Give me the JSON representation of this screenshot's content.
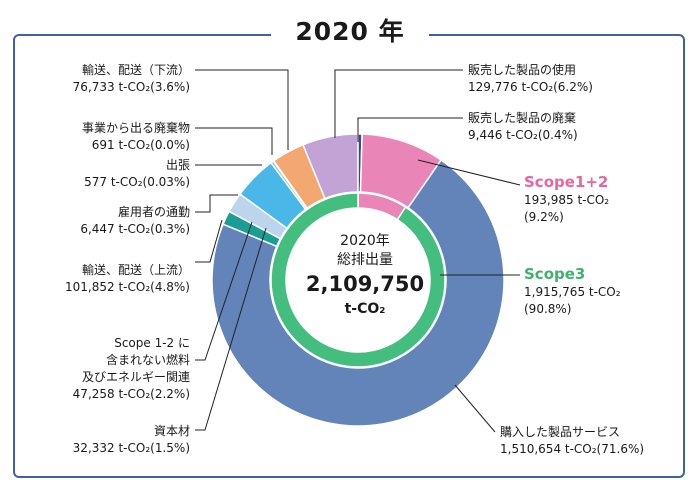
{
  "title": "2020 年",
  "center": {
    "line1": "2020年",
    "line2": "総排出量",
    "total": "2,109,750",
    "unit": "t-CO₂"
  },
  "chart_data": {
    "type": "pie",
    "title": "2020 年",
    "outer_ring": {
      "unit": "t-CO₂",
      "slices": [
        {
          "name": "販売した製品の使用",
          "value_text": "129,776 t-CO₂(6.2%)",
          "value": 129776,
          "percent": 6.2,
          "color": "#c3a2d5"
        },
        {
          "name": "販売した製品の廃棄",
          "value_text": "9,446 t-CO₂(0.4%)",
          "value": 9446,
          "percent": 0.4,
          "color": "#2f5088"
        },
        {
          "name": "Scope1+2",
          "value_text": "193,985 t-CO₂ (9.2%)",
          "value": 193985,
          "percent": 9.2,
          "color": "#ea86b7"
        },
        {
          "name": "購入した製品サービス",
          "value_text": "1,510,654 t-CO₂(71.6%)",
          "value": 1510654,
          "percent": 71.6,
          "color": "#6284b8"
        },
        {
          "name": "資本材",
          "value_text": "32,332 t-CO₂(1.5%)",
          "value": 32332,
          "percent": 1.5,
          "color": "#1a9d94"
        },
        {
          "name": "Scope 1-2 に 含まれない燃料 及びエネルギー関連",
          "value_text": "47,258 t-CO₂(2.2%)",
          "value": 47258,
          "percent": 2.2,
          "color": "#bdd5ec"
        },
        {
          "name": "輸送、配送（上流）",
          "value_text": "101,852 t-CO₂(4.8%)",
          "value": 101852,
          "percent": 4.8,
          "color": "#49b8e8"
        },
        {
          "name": "雇用者の通勤",
          "value_text": "6,447 t-CO₂(0.3%)",
          "value": 6447,
          "percent": 0.3,
          "color": "#82c6dc"
        },
        {
          "name": "出張",
          "value_text": "577 t-CO₂(0.03%)",
          "value": 577,
          "percent": 0.03,
          "color": "#c5c5c5"
        },
        {
          "name": "事業から出る廃棄物",
          "value_text": "691 t-CO₂(0.0%)",
          "value": 691,
          "percent": 0.0,
          "color": "#f0c79a"
        },
        {
          "name": "輸送、配送（下流）",
          "value_text": "76,733 t-CO₂(3.6%)",
          "value": 76733,
          "percent": 3.6,
          "color": "#f2a870"
        }
      ]
    },
    "inner_ring": {
      "slices": [
        {
          "name": "Scope1+2",
          "value_text": "193,985 t-CO₂ (9.2%)",
          "value": 193985,
          "percent": 9.2,
          "color": "#ea86b7"
        },
        {
          "name": "Scope3",
          "value_text": "1,915,765 t-CO₂ (90.8%)",
          "value": 1915765,
          "percent": 90.8,
          "color": "#43be7f"
        }
      ]
    },
    "legend": "callout labels",
    "scope_colors": {
      "scope12": "#e8669e",
      "scope3": "#3fb26d"
    }
  },
  "labels": {
    "hanbai_shiyou": {
      "name": "販売した製品の使用",
      "value": "129,776 t-CO₂(6.2%)"
    },
    "hanbai_haiki": {
      "name": "販売した製品の廃棄",
      "value": "9,446 t-CO₂(0.4%)"
    },
    "scope12": {
      "name": "Scope1+2",
      "value1": "193,985 t-CO₂",
      "value2": "(9.2%)"
    },
    "scope3": {
      "name": "Scope3",
      "value1": "1,915,765 t-CO₂",
      "value2": "(90.8%)"
    },
    "kounyu": {
      "name": "購入した製品サービス",
      "value": "1,510,654 t-CO₂(71.6%)"
    },
    "yusou_karyu": {
      "name": "輸送、配送（下流）",
      "value": "76,733 t-CO₂(3.6%)"
    },
    "jigyou_haikibutsu": {
      "name": "事業から出る廃棄物",
      "value": "691 t-CO₂(0.0%)"
    },
    "shucchou": {
      "name": "出張",
      "value": "577 t-CO₂(0.03%)"
    },
    "tsuukin": {
      "name": "雇用者の通勤",
      "value": "6,447 t-CO₂(0.3%)"
    },
    "yusou_jouryu": {
      "name": "輸送、配送（上流）",
      "value": "101,852 t-CO₂(4.8%)"
    },
    "nenryou": {
      "name1": "Scope 1-2 に",
      "name2": "含まれない燃料",
      "name3": "及びエネルギー関連",
      "value": "47,258 t-CO₂(2.2%)"
    },
    "shihonzai": {
      "name": "資本材",
      "value": "32,332 t-CO₂(1.5%)"
    }
  }
}
